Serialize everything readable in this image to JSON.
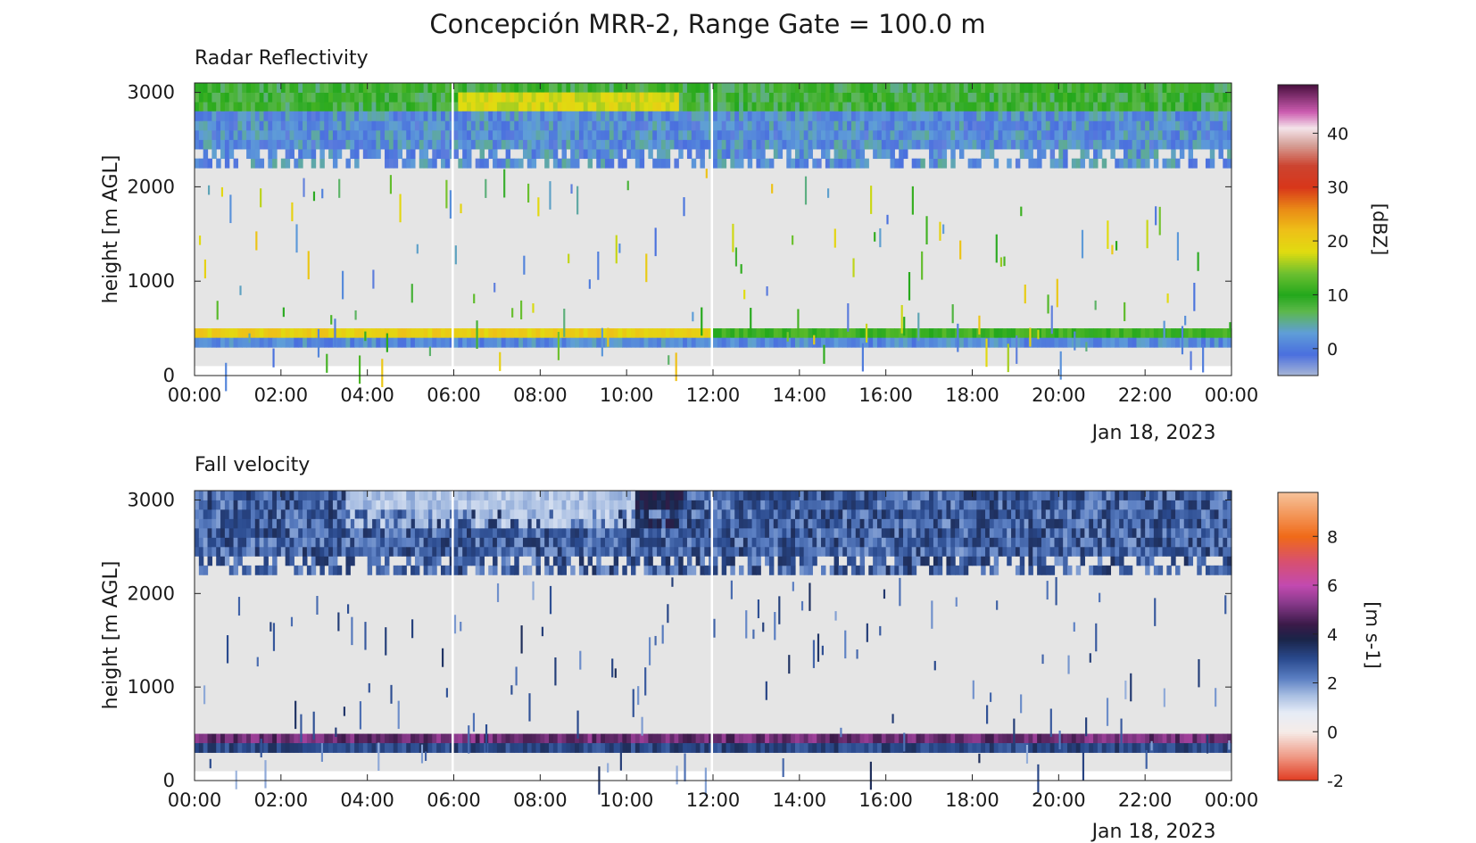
{
  "figure": {
    "title": "Concepción MRR-2, Range Gate = 100.0 m",
    "background": "#ffffff",
    "no_data_color": "#e5e5e5"
  },
  "chart_data": [
    {
      "type": "heatmap",
      "title": "Radar Reflectivity",
      "ylabel": "height [m AGL]",
      "xlabel": "",
      "date_label": "Jan 18, 2023",
      "x_ticks": [
        "00:00",
        "02:00",
        "04:00",
        "06:00",
        "08:00",
        "10:00",
        "12:00",
        "14:00",
        "16:00",
        "18:00",
        "20:00",
        "22:00",
        "00:00"
      ],
      "xlim_hours": [
        0,
        24
      ],
      "y_ticks": [
        0,
        1000,
        2000,
        3000
      ],
      "ylim": [
        0,
        3100
      ],
      "range_gate_m": 100,
      "colorbar": {
        "label": "[dBZ]",
        "range": [
          -5,
          49
        ],
        "ticks": [
          0,
          10,
          20,
          30,
          40
        ],
        "stops": [
          {
            "v": -5,
            "c": "#a9b7d6"
          },
          {
            "v": -1,
            "c": "#4a6fde"
          },
          {
            "v": 3,
            "c": "#5f9ed8"
          },
          {
            "v": 7,
            "c": "#5cb84a"
          },
          {
            "v": 10,
            "c": "#24a81c"
          },
          {
            "v": 14,
            "c": "#6cc030"
          },
          {
            "v": 18,
            "c": "#e0dc10"
          },
          {
            "v": 22,
            "c": "#eec018"
          },
          {
            "v": 26,
            "c": "#ea8a16"
          },
          {
            "v": 30,
            "c": "#d8361a"
          },
          {
            "v": 34,
            "c": "#cc4430"
          },
          {
            "v": 38,
            "c": "#d6a29a"
          },
          {
            "v": 41,
            "c": "#f4e4ea"
          },
          {
            "v": 44,
            "c": "#cc5cb0"
          },
          {
            "v": 49,
            "c": "#4a1040"
          }
        ]
      },
      "data_gaps_hours": [
        5.97,
        11.97
      ],
      "layers": [
        {
          "name": "upper layer 2800-3100 m",
          "height_m": [
            2800,
            3100
          ],
          "time_h": [
            0,
            24
          ],
          "value_range": [
            5,
            12
          ]
        },
        {
          "name": "upper enhanced band",
          "height_m": [
            2800,
            3000
          ],
          "time_h": [
            6.1,
            11.2
          ],
          "value_range": [
            16,
            20
          ]
        },
        {
          "name": "mid layer 2200-2800 m",
          "height_m": [
            2200,
            2800
          ],
          "time_h": [
            0,
            24
          ],
          "value_range": [
            -2,
            5
          ]
        },
        {
          "name": "bright band 400-500 m",
          "height_m": [
            400,
            500
          ],
          "time_h": [
            0,
            12
          ],
          "value_range": [
            18,
            22
          ]
        },
        {
          "name": "bright band 400-500 m (afternoon)",
          "height_m": [
            400,
            500
          ],
          "time_h": [
            12,
            24
          ],
          "value_range": [
            9,
            13
          ]
        },
        {
          "name": "lower layer 300-400 m",
          "height_m": [
            300,
            400
          ],
          "time_h": [
            0,
            24
          ],
          "value_range": [
            -1,
            4
          ]
        },
        {
          "name": "scattered echoes 100-2200 m",
          "height_m": [
            100,
            2200
          ],
          "time_h": [
            0,
            24
          ],
          "value_range": [
            -3,
            22
          ]
        }
      ]
    },
    {
      "type": "heatmap",
      "title": "Fall velocity",
      "ylabel": "height [m AGL]",
      "xlabel": "",
      "date_label": "Jan 18, 2023",
      "x_ticks": [
        "00:00",
        "02:00",
        "04:00",
        "06:00",
        "08:00",
        "10:00",
        "12:00",
        "14:00",
        "16:00",
        "18:00",
        "20:00",
        "22:00",
        "00:00"
      ],
      "xlim_hours": [
        0,
        24
      ],
      "y_ticks": [
        0,
        1000,
        2000,
        3000
      ],
      "ylim": [
        0,
        3100
      ],
      "range_gate_m": 100,
      "colorbar": {
        "label": "[m s-1]",
        "range": [
          -2,
          9.8
        ],
        "ticks": [
          -2,
          0,
          2,
          4,
          6,
          8
        ],
        "stops": [
          {
            "v": -2,
            "c": "#e03a20"
          },
          {
            "v": -1,
            "c": "#ef9a86"
          },
          {
            "v": 0,
            "c": "#f6ece8"
          },
          {
            "v": 0.8,
            "c": "#e6ecf6"
          },
          {
            "v": 1.5,
            "c": "#a8bee2"
          },
          {
            "v": 2.2,
            "c": "#5a7ec2"
          },
          {
            "v": 3.0,
            "c": "#2a4a8e"
          },
          {
            "v": 3.8,
            "c": "#1a2448"
          },
          {
            "v": 4.4,
            "c": "#3a1a48"
          },
          {
            "v": 5.3,
            "c": "#8a3a8c"
          },
          {
            "v": 6.0,
            "c": "#c24ab0"
          },
          {
            "v": 7.0,
            "c": "#d8506e"
          },
          {
            "v": 8.0,
            "c": "#f06a18"
          },
          {
            "v": 9.8,
            "c": "#f6c29a"
          }
        ]
      },
      "data_gaps_hours": [
        5.97,
        11.97
      ],
      "layers": [
        {
          "name": "upper layer 2200-3100 m",
          "height_m": [
            2200,
            3100
          ],
          "time_h": [
            0,
            24
          ],
          "value_range": [
            1.8,
            3.6
          ]
        },
        {
          "name": "slow band morning",
          "height_m": [
            2700,
            3100
          ],
          "time_h": [
            3.5,
            10.2
          ],
          "value_range": [
            1.0,
            1.8
          ]
        },
        {
          "name": "fast patch",
          "height_m": [
            2700,
            3100
          ],
          "time_h": [
            10.2,
            11.3
          ],
          "value_range": [
            3.4,
            4.2
          ]
        },
        {
          "name": "melting layer 400-500 m",
          "height_m": [
            400,
            500
          ],
          "time_h": [
            0,
            24
          ],
          "value_range": [
            4.4,
            5.6
          ]
        },
        {
          "name": "rain layer 300-400 m",
          "height_m": [
            300,
            400
          ],
          "time_h": [
            0,
            24
          ],
          "value_range": [
            2.6,
            3.6
          ]
        },
        {
          "name": "scattered echoes 100-2200 m",
          "height_m": [
            100,
            2200
          ],
          "time_h": [
            0,
            24
          ],
          "value_range": [
            1.6,
            3.6
          ]
        }
      ]
    }
  ]
}
